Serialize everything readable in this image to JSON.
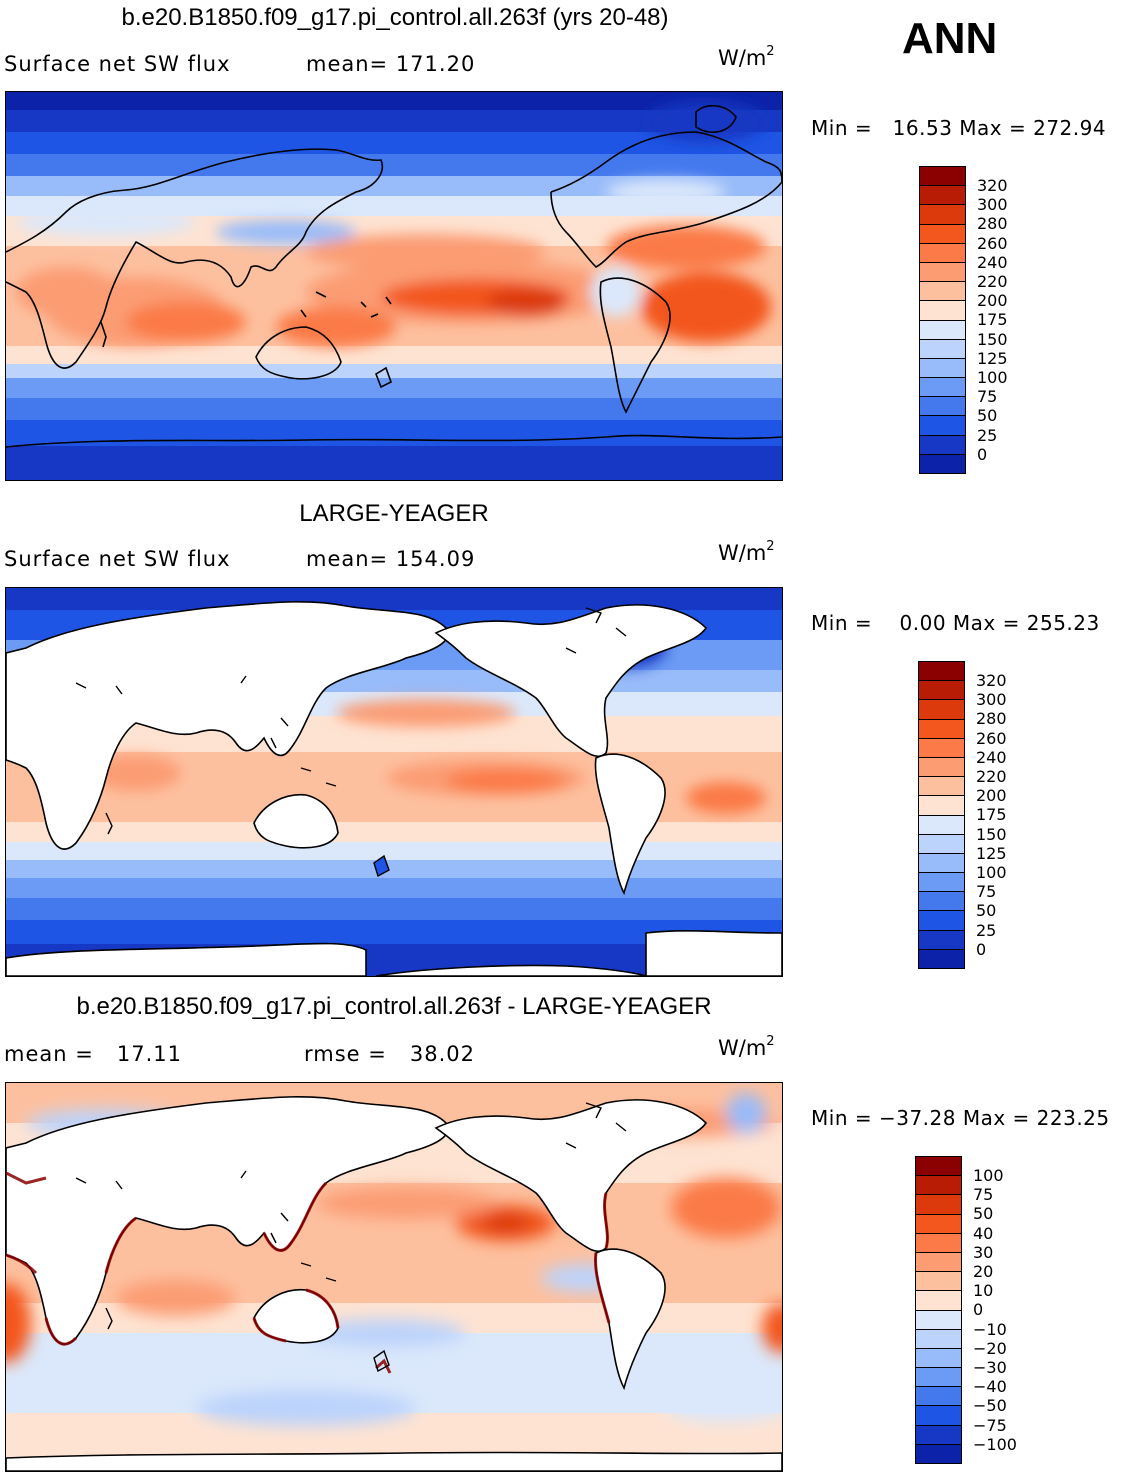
{
  "season": "ANN",
  "panels": [
    {
      "title": "b.e20.B1850.f09_g17.pi_control.all.263f (yrs 20-48)",
      "field_label": "Surface net SW flux",
      "stat_label": "mean= 171.20",
      "units": "W/m",
      "units_exp": "2",
      "minmax": "Min =   16.53 Max = 272.94",
      "colorbar": {
        "labels": [
          "320",
          "300",
          "280",
          "260",
          "240",
          "220",
          "200",
          "175",
          "150",
          "125",
          "100",
          "75",
          "50",
          "25",
          "0"
        ],
        "colors": [
          "#8b0000",
          "#b81c05",
          "#dc3a0c",
          "#f3571e",
          "#fb7a47",
          "#fb9c73",
          "#fdc09f",
          "#fee3d2",
          "#dbe8fb",
          "#bcd3fb",
          "#98bbf9",
          "#6c9bf5",
          "#4479ee",
          "#1f55e4",
          "#1738c4",
          "#0c22a8"
        ]
      },
      "map_type": "model"
    },
    {
      "title": "LARGE-YEAGER",
      "field_label": "Surface net SW flux",
      "stat_label": "mean= 154.09",
      "units": "W/m",
      "units_exp": "2",
      "minmax": "Min =    0.00 Max = 255.23",
      "colorbar": {
        "labels": [
          "320",
          "300",
          "280",
          "260",
          "240",
          "220",
          "200",
          "175",
          "150",
          "125",
          "100",
          "75",
          "50",
          "25",
          "0"
        ],
        "colors": [
          "#8b0000",
          "#b81c05",
          "#dc3a0c",
          "#f3571e",
          "#fb7a47",
          "#fb9c73",
          "#fdc09f",
          "#fee3d2",
          "#dbe8fb",
          "#bcd3fb",
          "#98bbf9",
          "#6c9bf5",
          "#4479ee",
          "#1f55e4",
          "#1738c4",
          "#0c22a8"
        ]
      },
      "map_type": "obs"
    },
    {
      "title": "b.e20.B1850.f09_g17.pi_control.all.263f - LARGE-YEAGER",
      "field_label": "mean =   17.11",
      "stat_label": "rmse =   38.02",
      "units": "W/m",
      "units_exp": "2",
      "minmax": "Min = −37.28 Max = 223.25",
      "colorbar": {
        "labels": [
          "100",
          "75",
          "50",
          "40",
          "30",
          "20",
          "10",
          "0",
          "−10",
          "−20",
          "−30",
          "−40",
          "−50",
          "−75",
          "−100"
        ],
        "colors": [
          "#8b0000",
          "#b81c05",
          "#dc3a0c",
          "#f3571e",
          "#fb7a47",
          "#fb9c73",
          "#fdc09f",
          "#fee3d2",
          "#dbe8fb",
          "#bcd3fb",
          "#98bbf9",
          "#6c9bf5",
          "#4479ee",
          "#1f55e4",
          "#1738c4",
          "#0c22a8"
        ]
      },
      "map_type": "diff"
    }
  ]
}
